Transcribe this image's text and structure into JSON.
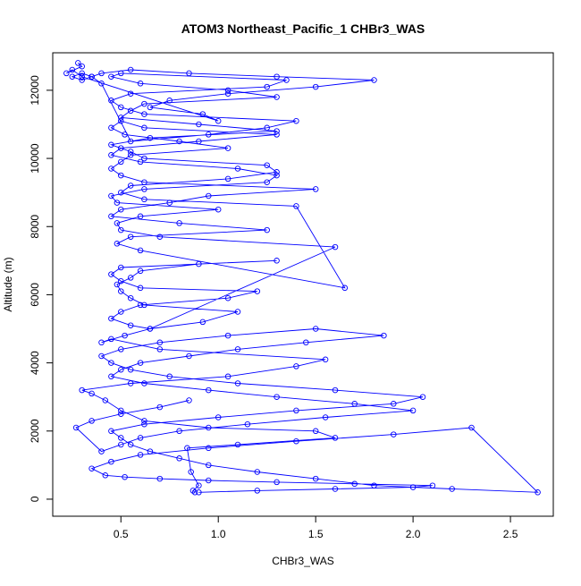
{
  "chart_data": {
    "type": "line",
    "title": "ATOM3 Northeast_Pacific_1 CHBr3_WAS",
    "xlabel": "CHBr3_WAS",
    "ylabel": "Altitude (m)",
    "xlim": [
      0.15,
      2.72
    ],
    "ylim": [
      -500,
      13100
    ],
    "x_ticks": [
      0.5,
      1.0,
      1.5,
      2.0,
      2.5
    ],
    "x_tick_labels": [
      "0.5",
      "1.0",
      "1.5",
      "2.0",
      "2.5"
    ],
    "y_ticks": [
      0,
      2000,
      4000,
      6000,
      8000,
      10000,
      12000
    ],
    "y_tick_labels": [
      "0",
      "2000",
      "4000",
      "6000",
      "8000",
      "10000",
      "12000"
    ],
    "marker": "open-circle",
    "color": "#0000ff",
    "series": [
      {
        "x": [
          0.88,
          0.87,
          0.9,
          0.86,
          0.84,
          1.1,
          1.6,
          1.5,
          0.95,
          0.62,
          0.5,
          0.42,
          0.35,
          0.3,
          0.55,
          1.05,
          1.4,
          1.55,
          0.7,
          0.45,
          0.4,
          0.52,
          0.65,
          0.92,
          1.1,
          0.62,
          0.55,
          0.5,
          0.48,
          0.55,
          0.6,
          0.9,
          1.3,
          0.5,
          0.45,
          0.5,
          0.6,
          1.2,
          1.05,
          0.6,
          0.5,
          0.45,
          0.55,
          0.65,
          1.6,
          0.7,
          0.5,
          0.48,
          0.6,
          1.0,
          0.48,
          0.45,
          0.62,
          1.25,
          1.3,
          1.1,
          0.6,
          0.45,
          0.5,
          0.9,
          1.3,
          0.62,
          0.5,
          0.45,
          0.52,
          0.8,
          1.05,
          0.55,
          0.5,
          0.45,
          0.5,
          0.62,
          1.5,
          0.95,
          0.75,
          0.5,
          0.45,
          0.8,
          1.25,
          0.55,
          0.48,
          0.6,
          1.65,
          1.4,
          0.62,
          0.5,
          0.55,
          1.05,
          1.3,
          1.25,
          0.62,
          0.55,
          0.45,
          0.65,
          1.3,
          0.9,
          0.5,
          0.55,
          0.62,
          1.3,
          1.05,
          0.6,
          0.45,
          0.5,
          1.35,
          1.25,
          0.55,
          0.45,
          0.5,
          0.62,
          1.4,
          1.25,
          0.95,
          0.55,
          0.4,
          0.35,
          0.3,
          0.25,
          0.3,
          0.35,
          0.4,
          0.55,
          0.85,
          1.3,
          1.8,
          1.5,
          1.05,
          0.75,
          0.65,
          0.92,
          1.0,
          0.3,
          0.25,
          0.22,
          0.3,
          0.28
        ],
        "y": [
          200,
          250,
          400,
          800,
          1500,
          1600,
          1800,
          2000,
          2100,
          2300,
          2600,
          2900,
          3100,
          3200,
          3400,
          3600,
          3900,
          4100,
          4400,
          4700,
          4600,
          4800,
          5000,
          5200,
          5500,
          5700,
          5900,
          6100,
          6300,
          6500,
          6700,
          6900,
          7000,
          6800,
          6600,
          6400,
          6200,
          6100,
          5900,
          5700,
          5500,
          5300,
          5100,
          5000,
          7400,
          7700,
          7900,
          8100,
          8300,
          8500,
          8700,
          8900,
          9100,
          9300,
          9500,
          9700,
          9900,
          10100,
          10300,
          10500,
          10700,
          10900,
          11100,
          10900,
          10700,
          10500,
          10300,
          10100,
          9900,
          9700,
          9500,
          9300,
          9100,
          8900,
          8700,
          8500,
          8300,
          8100,
          7900,
          7700,
          7500,
          7300,
          6200,
          8600,
          8800,
          9000,
          9200,
          9400,
          9600,
          9800,
          10000,
          10200,
          10400,
          10600,
          10800,
          11000,
          11200,
          11400,
          11600,
          11800,
          12000,
          12200,
          12400,
          12500,
          12300,
          12100,
          11900,
          11700,
          11500,
          11300,
          11100,
          10900,
          10700,
          10500,
          12200,
          12400,
          12500,
          12400,
          12300,
          12400,
          12500,
          12600,
          12500,
          12400,
          12300,
          12100,
          11900,
          11700,
          11500,
          11300,
          11100,
          12400,
          12600,
          12500,
          12700,
          12800
        ]
      },
      {
        "x": [
          0.9,
          1.2,
          1.6,
          2.0,
          2.1,
          1.7,
          1.3,
          0.95,
          0.7,
          0.52,
          0.42,
          0.35,
          0.45,
          0.6,
          0.95,
          1.4,
          1.9,
          2.3,
          2.64,
          2.2,
          1.8,
          1.5,
          1.2,
          0.95,
          0.8,
          0.65,
          0.55,
          0.5,
          0.45,
          0.62,
          1.0,
          1.4,
          1.9,
          2.05,
          1.6,
          1.1,
          0.75,
          0.55,
          0.45,
          0.4,
          0.5,
          0.7,
          1.05,
          1.5,
          1.85,
          1.45,
          1.1,
          0.85,
          0.6,
          0.5,
          0.45,
          0.62,
          0.95,
          1.3,
          1.7,
          2.0,
          1.55,
          1.15,
          0.8,
          0.6,
          0.5,
          0.4,
          0.27,
          0.35,
          0.5,
          0.7,
          0.85
        ],
        "y": [
          200,
          250,
          300,
          350,
          400,
          450,
          500,
          550,
          600,
          650,
          700,
          900,
          1100,
          1300,
          1500,
          1700,
          1900,
          2100,
          200,
          300,
          400,
          600,
          800,
          1000,
          1200,
          1400,
          1600,
          1800,
          2000,
          2200,
          2400,
          2600,
          2800,
          3000,
          3200,
          3400,
          3600,
          3800,
          4000,
          4200,
          4400,
          4600,
          4800,
          5000,
          4800,
          4600,
          4400,
          4200,
          4000,
          3800,
          3600,
          3400,
          3200,
          3000,
          2800,
          2600,
          2400,
          2200,
          2000,
          1800,
          1600,
          1400,
          2100,
          2300,
          2500,
          2700,
          2900
        ]
      }
    ]
  }
}
